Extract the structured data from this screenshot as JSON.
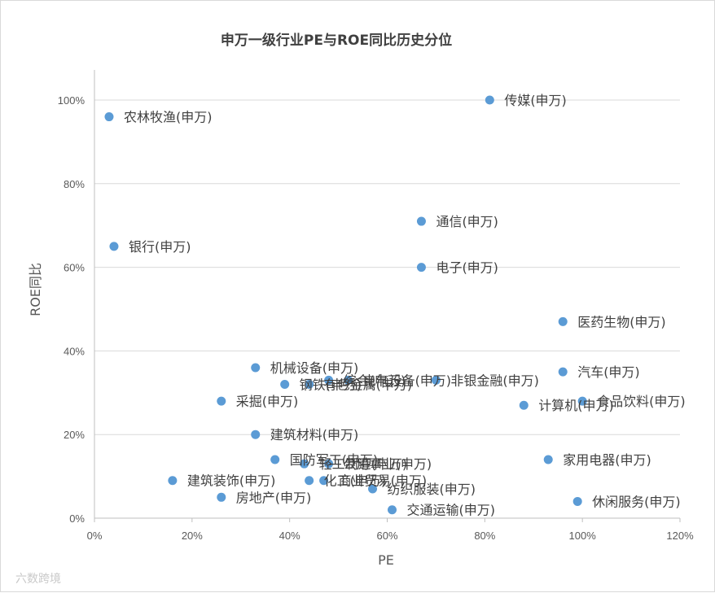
{
  "chart_data": {
    "type": "scatter",
    "title": "申万一级行业PE与ROE同比历史分位",
    "xlabel": "PE",
    "ylabel": "ROE同比",
    "xlim": [
      0,
      1.2
    ],
    "ylim": [
      0,
      1.0
    ],
    "x_ticks": [
      "0%",
      "20%",
      "40%",
      "60%",
      "80%",
      "100%",
      "120%"
    ],
    "y_ticks": [
      "0%",
      "20%",
      "40%",
      "60%",
      "80%",
      "100%"
    ],
    "grid": "horizontal",
    "marker_color": "#5b9bd5",
    "points": [
      {
        "label": "农林牧渔(申万)",
        "x": 0.03,
        "y": 0.96
      },
      {
        "label": "传媒(申万)",
        "x": 0.81,
        "y": 1.0
      },
      {
        "label": "银行(申万)",
        "x": 0.04,
        "y": 0.65
      },
      {
        "label": "通信(申万)",
        "x": 0.67,
        "y": 0.71
      },
      {
        "label": "电子(申万)",
        "x": 0.67,
        "y": 0.6
      },
      {
        "label": "医药生物(申万)",
        "x": 0.96,
        "y": 0.47
      },
      {
        "label": "机械设备(申万)",
        "x": 0.33,
        "y": 0.36
      },
      {
        "label": "汽车(申万)",
        "x": 0.96,
        "y": 0.35
      },
      {
        "label": "钢铁(申万)",
        "x": 0.39,
        "y": 0.32
      },
      {
        "label": "有色金属(申万)",
        "x": 0.44,
        "y": 0.32
      },
      {
        "label": "综合(申万)",
        "x": 0.48,
        "y": 0.33
      },
      {
        "label": "电气设备(申万)",
        "x": 0.52,
        "y": 0.33
      },
      {
        "label": "非银金融(申万)",
        "x": 0.7,
        "y": 0.33
      },
      {
        "label": "采掘(申万)",
        "x": 0.26,
        "y": 0.28
      },
      {
        "label": "计算机(申万)",
        "x": 0.88,
        "y": 0.27
      },
      {
        "label": "食品饮料(申万)",
        "x": 1.0,
        "y": 0.28
      },
      {
        "label": "建筑材料(申万)",
        "x": 0.33,
        "y": 0.2
      },
      {
        "label": "国防军工(申万)",
        "x": 0.37,
        "y": 0.14
      },
      {
        "label": "轻工制造(申万)",
        "x": 0.43,
        "y": 0.13
      },
      {
        "label": "公用事业(申万)",
        "x": 0.48,
        "y": 0.13
      },
      {
        "label": "家用电器(申万)",
        "x": 0.93,
        "y": 0.14
      },
      {
        "label": "建筑装饰(申万)",
        "x": 0.16,
        "y": 0.09
      },
      {
        "label": "化工(申万)",
        "x": 0.44,
        "y": 0.09
      },
      {
        "label": "商业贸易(申万)",
        "x": 0.47,
        "y": 0.09
      },
      {
        "label": "纺织服装(申万)",
        "x": 0.57,
        "y": 0.07
      },
      {
        "label": "房地产(申万)",
        "x": 0.26,
        "y": 0.05
      },
      {
        "label": "交通运输(申万)",
        "x": 0.61,
        "y": 0.02
      },
      {
        "label": "休闲服务(申万)",
        "x": 0.99,
        "y": 0.04
      }
    ]
  },
  "watermark": {
    "text": "六数跨境"
  }
}
